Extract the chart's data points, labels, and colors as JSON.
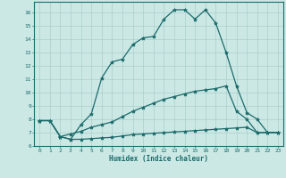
{
  "xlabel": "Humidex (Indice chaleur)",
  "background_color": "#cce8e5",
  "grid_color": "#aacfcc",
  "line_color": "#1a6b6b",
  "xlim": [
    -0.5,
    23.5
  ],
  "ylim": [
    6,
    16.8
  ],
  "yticks": [
    6,
    7,
    8,
    9,
    10,
    11,
    12,
    13,
    14,
    15,
    16
  ],
  "xticks": [
    0,
    1,
    2,
    3,
    4,
    5,
    6,
    7,
    8,
    9,
    10,
    11,
    12,
    13,
    14,
    15,
    16,
    17,
    18,
    19,
    20,
    21,
    22,
    23
  ],
  "line1_x": [
    0,
    1,
    2,
    3,
    4,
    5,
    6,
    7,
    8,
    9,
    10,
    11,
    12,
    13,
    14,
    15,
    16,
    17,
    18,
    19,
    20,
    21,
    22,
    23
  ],
  "line1_y": [
    7.9,
    7.9,
    6.7,
    6.9,
    7.1,
    7.4,
    7.6,
    7.8,
    8.2,
    8.6,
    8.9,
    9.2,
    9.5,
    9.7,
    9.9,
    10.1,
    10.2,
    10.3,
    10.5,
    8.6,
    8.0,
    7.0,
    7.0,
    7.0
  ],
  "line2_x": [
    0,
    1,
    2,
    3,
    4,
    5,
    6,
    7,
    8,
    9,
    10,
    11,
    12,
    13,
    14,
    15,
    16,
    17,
    18,
    19,
    20,
    21,
    22,
    23
  ],
  "line2_y": [
    7.9,
    7.9,
    6.7,
    6.5,
    6.5,
    6.55,
    6.6,
    6.65,
    6.75,
    6.85,
    6.9,
    6.95,
    7.0,
    7.05,
    7.1,
    7.15,
    7.2,
    7.25,
    7.3,
    7.35,
    7.4,
    7.0,
    7.0,
    7.0
  ],
  "line3_x": [
    0,
    1,
    2,
    3,
    4,
    5,
    6,
    7,
    8,
    9,
    10,
    11,
    12,
    13,
    14,
    15,
    16,
    17,
    18,
    19,
    20,
    21,
    22,
    23
  ],
  "line3_y": [
    7.9,
    7.9,
    6.7,
    6.5,
    7.6,
    8.4,
    11.1,
    12.3,
    12.5,
    13.6,
    14.1,
    14.2,
    15.5,
    16.2,
    16.2,
    15.5,
    16.2,
    15.2,
    13.0,
    10.5,
    8.5,
    8.0,
    7.0,
    7.0
  ]
}
